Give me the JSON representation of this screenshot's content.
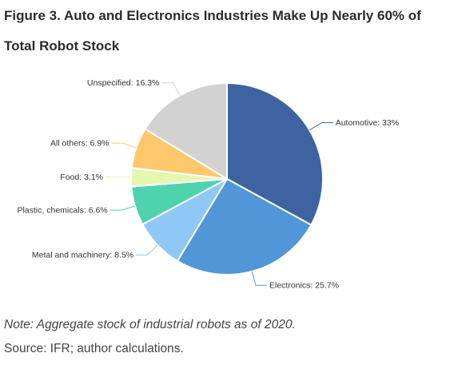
{
  "figure": {
    "title_line1": "Figure 3. Auto and Electronics Industries Make Up Nearly 60% of",
    "title_line2": "Total Robot Stock",
    "note": "Note: Aggregate stock of industrial robots as of 2020.",
    "source": "Source: IFR; author calculations."
  },
  "chart_data": {
    "type": "pie",
    "title": "Figure 3. Auto and Electronics Industries Make Up Nearly 60% of Total Robot Stock",
    "slices": [
      {
        "label": "Automotive: 33%",
        "value": 33,
        "color": "#3d64a0"
      },
      {
        "label": "Electronics: 25.7%",
        "value": 25.7,
        "color": "#5196d6"
      },
      {
        "label": "Metal and machinery: 8.5%",
        "value": 8.5,
        "color": "#8fc7f7"
      },
      {
        "label": "Plastic, chemicals: 6.6%",
        "value": 6.6,
        "color": "#4fd3ac"
      },
      {
        "label": "Food: 3.1%",
        "value": 3.1,
        "color": "#e4f6b0"
      },
      {
        "label": "All others: 6.9%",
        "value": 6.9,
        "color": "#fdc86c"
      },
      {
        "label": "Unspecified: 16.3%",
        "value": 16.3,
        "color": "#d2d2d2"
      }
    ],
    "start_angle": "12 o'clock",
    "direction": "clockwise",
    "legend": "none"
  }
}
